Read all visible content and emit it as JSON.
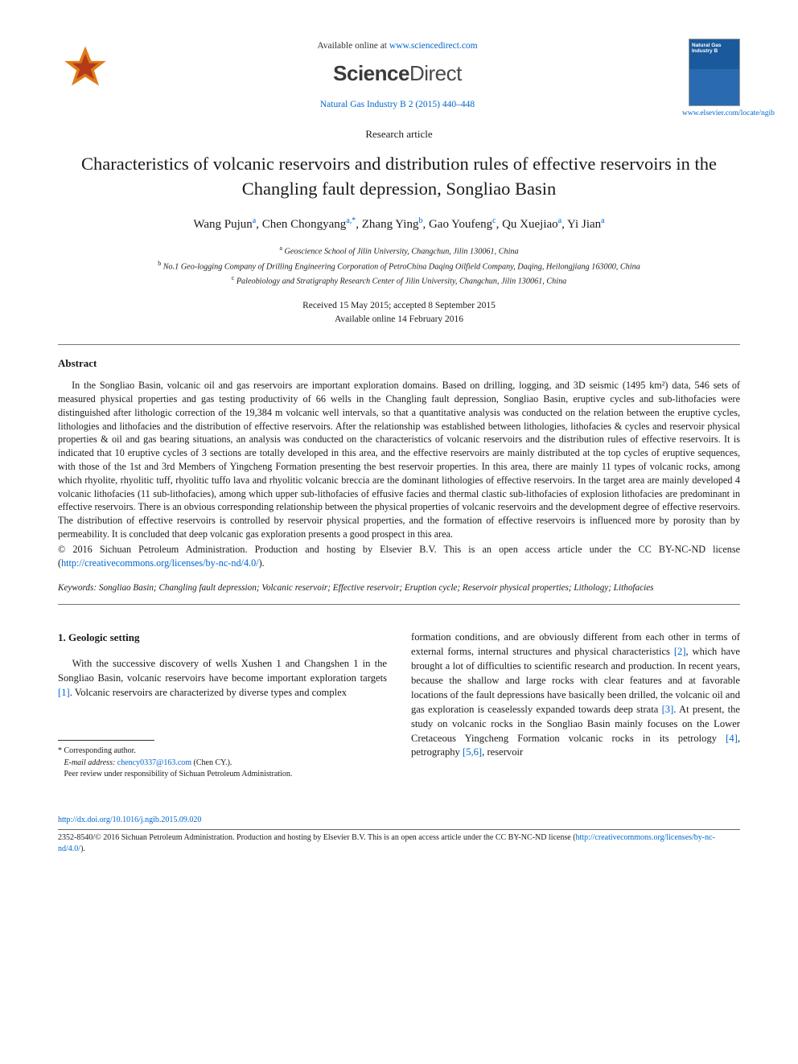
{
  "header": {
    "available_prefix": "Available online at ",
    "available_url": "www.sciencedirect.com",
    "sd_brand_prefix": "Science",
    "sd_brand_suffix": "Direct",
    "journal_ref": "Natural Gas Industry B 2 (2015) 440–448",
    "cover_title": "Natural Gas Industry B",
    "cover_link": "www.elsevier.com/locate/ngib",
    "publisher_logo_colors": {
      "outer": "#e07a1a",
      "inner": "#b33a1a"
    }
  },
  "article": {
    "type": "Research article",
    "title": "Characteristics of volcanic reservoirs and distribution rules of effective reservoirs in the Changling fault depression, Songliao Basin",
    "authors_html": "Wang Pujun<sup><a>a</a></sup>, Chen Chongyang<sup><a>a,</a>*</sup>, Zhang Ying<sup><a>b</a></sup>, Gao Youfeng<sup><a>c</a></sup>, Qu Xuejiao<sup><a>a</a></sup>, Yi Jian<sup><a>a</a></sup>",
    "affiliations": [
      "<sup>a</sup> Geoscience School of Jilin University, Changchun, Jilin 130061, China",
      "<sup>b</sup> No.1 Geo-logging Company of Drilling Engineering Corporation of PetroChina Daqing Oilfield Company, Daqing, Heilongjiang 163000, China",
      "<sup>c</sup> Paleobiology and Stratigraphy Research Center of Jilin University, Changchun, Jilin 130061, China"
    ],
    "dates_line1": "Received 15 May 2015; accepted 8 September 2015",
    "dates_line2": "Available online 14 February 2016"
  },
  "abstract": {
    "heading": "Abstract",
    "body": "In the Songliao Basin, volcanic oil and gas reservoirs are important exploration domains. Based on drilling, logging, and 3D seismic (1495 km²) data, 546 sets of measured physical properties and gas testing productivity of 66 wells in the Changling fault depression, Songliao Basin, eruptive cycles and sub-lithofacies were distinguished after lithologic correction of the 19,384 m volcanic well intervals, so that a quantitative analysis was conducted on the relation between the eruptive cycles, lithologies and lithofacies and the distribution of effective reservoirs. After the relationship was established between lithologies, lithofacies & cycles and reservoir physical properties & oil and gas bearing situations, an analysis was conducted on the characteristics of volcanic reservoirs and the distribution rules of effective reservoirs. It is indicated that 10 eruptive cycles of 3 sections are totally developed in this area, and the effective reservoirs are mainly distributed at the top cycles of eruptive sequences, with those of the 1st and 3rd Members of Yingcheng Formation presenting the best reservoir properties. In this area, there are mainly 11 types of volcanic rocks, among which rhyolite, rhyolitic tuff, rhyolitic tuffo lava and rhyolitic volcanic breccia are the dominant lithologies of effective reservoirs. In the target area are mainly developed 4 volcanic lithofacies (11 sub-lithofacies), among which upper sub-lithofacies of effusive facies and thermal clastic sub-lithofacies of explosion lithofacies are predominant in effective reservoirs. There is an obvious corresponding relationship between the physical properties of volcanic reservoirs and the development degree of effective reservoirs. The distribution of effective reservoirs is controlled by reservoir physical properties, and the formation of effective reservoirs is influenced more by porosity than by permeability. It is concluded that deep volcanic gas exploration presents a good prospect in this area.",
    "license_prefix": "© 2016 Sichuan Petroleum Administration. Production and hosting by Elsevier B.V. This is an open access article under the CC BY-NC-ND license (",
    "license_url": "http://creativecommons.org/licenses/by-nc-nd/4.0/",
    "license_suffix": ")."
  },
  "keywords": {
    "label": "Keywords:",
    "text": " Songliao Basin; Changling fault depression; Volcanic reservoir; Effective reservoir; Eruption cycle; Reservoir physical properties; Lithology; Lithofacies"
  },
  "body": {
    "section_num": "1.",
    "section_title": "Geologic setting",
    "col1": "With the successive discovery of wells Xushen 1 and Changshen 1 in the Songliao Basin, volcanic reservoirs have become important exploration targets <a class=\"ref\">[1]</a>. Volcanic reservoirs are characterized by diverse types and complex",
    "col2": "formation conditions, and are obviously different from each other in terms of external forms, internal structures and physical characteristics <a class=\"ref\">[2]</a>, which have brought a lot of difficulties to scientific research and production. In recent years, because the shallow and large rocks with clear features and at favorable locations of the fault depressions have basically been drilled, the volcanic oil and gas exploration is ceaselessly expanded towards deep strata <a class=\"ref\">[3]</a>. At present, the study on volcanic rocks in the Songliao Basin mainly focuses on the Lower Cretaceous Yingcheng Formation volcanic rocks in its petrology <a class=\"ref\">[4]</a>, petrography <a class=\"ref\">[5,6]</a>, reservoir"
  },
  "footnotes": {
    "corr": "* Corresponding author.",
    "email_label": "E-mail address:",
    "email": "chency0337@163.com",
    "email_who": "(Chen CY.).",
    "peer": "Peer review under responsibility of Sichuan Petroleum Administration."
  },
  "footer": {
    "doi": "http://dx.doi.org/10.1016/j.ngib.2015.09.020",
    "issn_line": "2352-8540/© 2016 Sichuan Petroleum Administration. Production and hosting by Elsevier B.V. This is an open access article under the CC BY-NC-ND license (",
    "issn_url": "http://creativecommons.org/licenses/by-nc-nd/4.0/",
    "issn_suffix": ")."
  },
  "colors": {
    "link": "#0066cc",
    "text": "#1a1a1a",
    "rule": "#777777"
  }
}
